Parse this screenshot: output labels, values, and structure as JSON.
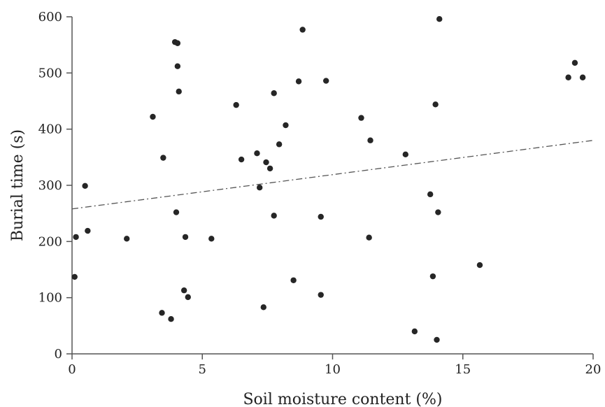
{
  "chart_data": {
    "type": "scatter",
    "title": "",
    "xlabel": "Soil moisture content (%)",
    "ylabel": "Burial time (s)",
    "xlim": [
      0,
      20
    ],
    "ylim": [
      0,
      600
    ],
    "x_ticks": [
      0,
      5,
      10,
      15,
      20
    ],
    "y_ticks": [
      0,
      100,
      200,
      300,
      400,
      500,
      600
    ],
    "grid": false,
    "legend": "none",
    "colors": {
      "points": "#262626",
      "axes": "#555555",
      "trendline": "#555555"
    },
    "trendline": {
      "style": "dash-dot",
      "x": [
        0,
        20
      ],
      "y": [
        258,
        380
      ]
    },
    "series": [
      {
        "points": [
          [
            0.1,
            137
          ],
          [
            0.15,
            208
          ],
          [
            0.5,
            299
          ],
          [
            0.6,
            219
          ],
          [
            2.1,
            205
          ],
          [
            3.1,
            422
          ],
          [
            3.5,
            349
          ],
          [
            3.45,
            73
          ],
          [
            3.8,
            62
          ],
          [
            3.95,
            555
          ],
          [
            4.05,
            553
          ],
          [
            4.05,
            512
          ],
          [
            4.1,
            467
          ],
          [
            4.0,
            252
          ],
          [
            4.3,
            113
          ],
          [
            4.35,
            208
          ],
          [
            4.45,
            101
          ],
          [
            5.35,
            205
          ],
          [
            6.3,
            443
          ],
          [
            6.5,
            346
          ],
          [
            7.1,
            357
          ],
          [
            7.2,
            296
          ],
          [
            7.35,
            83
          ],
          [
            7.45,
            341
          ],
          [
            7.6,
            330
          ],
          [
            7.75,
            464
          ],
          [
            7.75,
            246
          ],
          [
            7.95,
            373
          ],
          [
            8.2,
            407
          ],
          [
            8.5,
            131
          ],
          [
            8.7,
            485
          ],
          [
            8.85,
            577
          ],
          [
            9.55,
            105
          ],
          [
            9.55,
            244
          ],
          [
            9.75,
            486
          ],
          [
            11.1,
            420
          ],
          [
            11.4,
            207
          ],
          [
            11.45,
            380
          ],
          [
            12.8,
            355
          ],
          [
            13.15,
            40
          ],
          [
            13.75,
            284
          ],
          [
            13.85,
            138
          ],
          [
            13.95,
            444
          ],
          [
            14.0,
            25
          ],
          [
            14.05,
            252
          ],
          [
            14.1,
            596
          ],
          [
            15.65,
            158
          ],
          [
            19.05,
            492
          ],
          [
            19.3,
            518
          ],
          [
            19.6,
            492
          ]
        ]
      }
    ]
  }
}
